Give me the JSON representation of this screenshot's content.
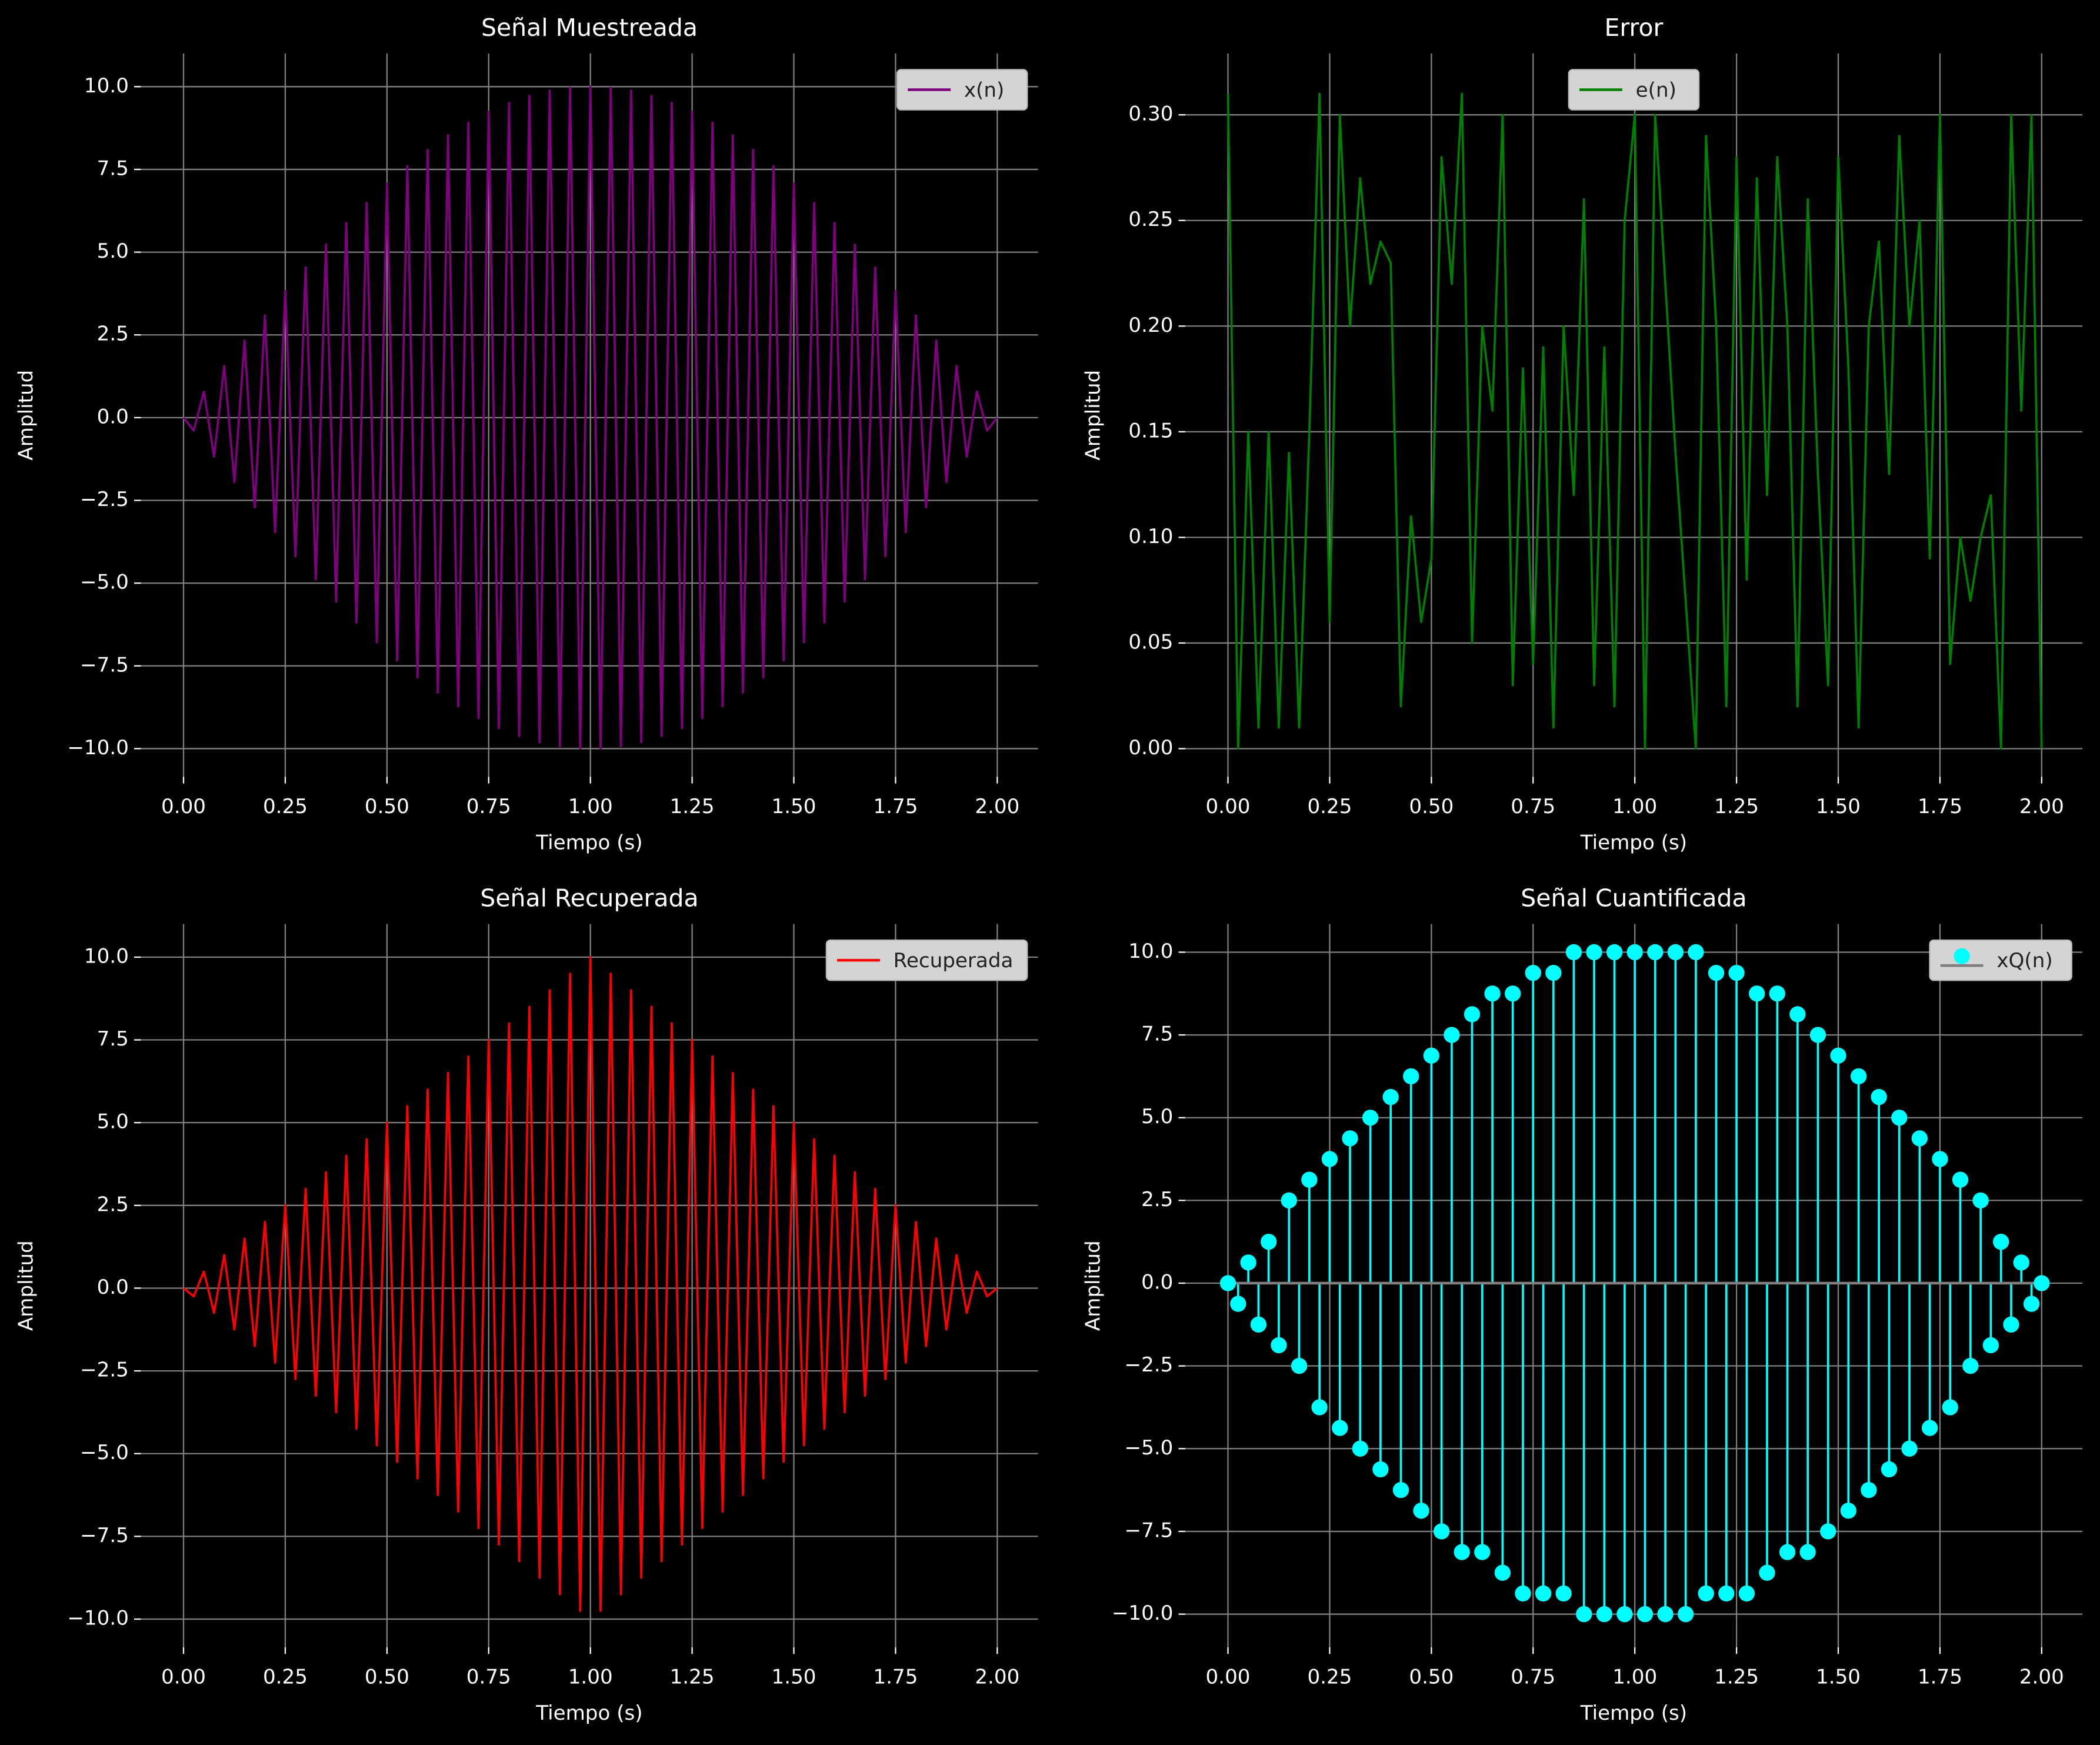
{
  "chart_data": [
    {
      "type": "line",
      "title": "Señal Muestreada",
      "xlabel": "Tiempo (s)",
      "ylabel": "Amplitud",
      "legend": "upper right",
      "grid": true,
      "x": [
        0,
        0.025,
        0.05,
        0.075,
        0.1,
        0.125,
        0.15,
        0.175,
        0.2,
        0.225,
        0.25,
        0.275,
        0.3,
        0.325,
        0.35,
        0.375,
        0.4,
        0.425,
        0.45,
        0.475,
        0.5,
        0.525,
        0.55,
        0.575,
        0.6,
        0.625,
        0.65,
        0.675,
        0.7,
        0.725,
        0.75,
        0.775,
        0.8,
        0.825,
        0.85,
        0.875,
        0.9,
        0.925,
        0.95,
        0.975,
        1,
        1.025,
        1.05,
        1.075,
        1.1,
        1.125,
        1.15,
        1.175,
        1.2,
        1.225,
        1.25,
        1.275,
        1.3,
        1.325,
        1.35,
        1.375,
        1.4,
        1.425,
        1.45,
        1.475,
        1.5,
        1.525,
        1.55,
        1.575,
        1.6,
        1.625,
        1.65,
        1.675,
        1.7,
        1.725,
        1.75,
        1.775,
        1.8,
        1.825,
        1.85,
        1.875,
        1.9,
        1.925,
        1.95,
        1.975,
        2
      ],
      "series": [
        {
          "name": "x(n)",
          "color": "#800080",
          "values": [
            0,
            -0.39,
            0.79,
            -1.18,
            1.56,
            -1.95,
            2.33,
            -2.71,
            3.09,
            -3.46,
            3.83,
            -4.19,
            4.54,
            -4.89,
            5.23,
            -5.56,
            5.88,
            -6.19,
            6.49,
            -6.79,
            7.07,
            -7.34,
            7.6,
            -7.85,
            8.09,
            -8.31,
            8.53,
            -8.72,
            8.91,
            -9.08,
            9.24,
            -9.38,
            9.51,
            -9.62,
            9.72,
            -9.81,
            9.88,
            -9.93,
            9.97,
            -9.99,
            10,
            -9.99,
            9.97,
            -9.93,
            9.88,
            -9.81,
            9.72,
            -9.62,
            9.51,
            -9.38,
            9.24,
            -9.08,
            8.91,
            -8.72,
            8.53,
            -8.31,
            8.09,
            -7.85,
            7.6,
            -7.34,
            7.07,
            -6.79,
            6.49,
            -6.19,
            5.88,
            -5.56,
            5.23,
            -4.89,
            4.54,
            -4.19,
            3.83,
            -3.46,
            3.09,
            -2.71,
            2.33,
            -1.95,
            1.56,
            -1.18,
            0.79,
            -0.39,
            0
          ]
        }
      ],
      "xlim": [
        -0.105,
        2.1
      ],
      "ylim": [
        -10.85,
        11.0
      ],
      "xticks": [
        {
          "value": 0,
          "label": "0.00"
        },
        {
          "value": 0.25,
          "label": "0.25"
        },
        {
          "value": 0.5,
          "label": "0.50"
        },
        {
          "value": 0.75,
          "label": "0.75"
        },
        {
          "value": 1,
          "label": "1.00"
        },
        {
          "value": 1.25,
          "label": "1.25"
        },
        {
          "value": 1.5,
          "label": "1.50"
        },
        {
          "value": 1.75,
          "label": "1.75"
        },
        {
          "value": 2,
          "label": "2.00"
        }
      ],
      "yticks": [
        {
          "value": -10,
          "label": "−10.0"
        },
        {
          "value": -7.5,
          "label": "−7.5"
        },
        {
          "value": -5,
          "label": "−5.0"
        },
        {
          "value": -2.5,
          "label": "−2.5"
        },
        {
          "value": 0,
          "label": "0.0"
        },
        {
          "value": 2.5,
          "label": "2.5"
        },
        {
          "value": 5,
          "label": "5.0"
        },
        {
          "value": 7.5,
          "label": "7.5"
        },
        {
          "value": 10,
          "label": "10.0"
        }
      ]
    },
    {
      "type": "line",
      "title": "Error",
      "xlabel": "Tiempo (s)",
      "ylabel": "Amplitud",
      "legend": "upper center",
      "grid": true,
      "x": [
        0,
        0.025,
        0.05,
        0.075,
        0.1,
        0.125,
        0.15,
        0.175,
        0.2,
        0.225,
        0.25,
        0.275,
        0.3,
        0.325,
        0.35,
        0.375,
        0.4,
        0.425,
        0.45,
        0.475,
        0.5,
        0.525,
        0.55,
        0.575,
        0.6,
        0.625,
        0.65,
        0.675,
        0.7,
        0.725,
        0.75,
        0.775,
        0.8,
        0.825,
        0.85,
        0.875,
        0.9,
        0.925,
        0.95,
        0.975,
        1,
        1.025,
        1.05,
        1.075,
        1.1,
        1.125,
        1.15,
        1.175,
        1.2,
        1.225,
        1.25,
        1.275,
        1.3,
        1.325,
        1.35,
        1.375,
        1.4,
        1.425,
        1.45,
        1.475,
        1.5,
        1.525,
        1.55,
        1.575,
        1.6,
        1.625,
        1.65,
        1.675,
        1.7,
        1.725,
        1.75,
        1.775,
        1.8,
        1.825,
        1.85,
        1.875,
        1.9,
        1.925,
        1.95,
        1.975,
        2
      ],
      "series": [
        {
          "name": "e(n)",
          "color": "#008000",
          "values": [
            0.31,
            0.0,
            0.15,
            0.01,
            0.15,
            0.01,
            0.14,
            0.01,
            0.15,
            0.31,
            0.06,
            0.3,
            0.2,
            0.27,
            0.22,
            0.24,
            0.23,
            0.02,
            0.11,
            0.06,
            0.09,
            0.28,
            0.22,
            0.31,
            0.05,
            0.2,
            0.16,
            0.3,
            0.03,
            0.18,
            0.04,
            0.19,
            0.01,
            0.2,
            0.12,
            0.26,
            0.03,
            0.19,
            0.02,
            0.25,
            0.3,
            0.0,
            0.3,
            0.22,
            0.14,
            0.07,
            0.0,
            0.29,
            0.2,
            0.02,
            0.28,
            0.08,
            0.27,
            0.12,
            0.28,
            0.2,
            0.02,
            0.26,
            0.13,
            0.03,
            0.28,
            0.18,
            0.01,
            0.2,
            0.24,
            0.13,
            0.29,
            0.2,
            0.25,
            0.09,
            0.3,
            0.04,
            0.1,
            0.07,
            0.1,
            0.12,
            0.0,
            0.3,
            0.16,
            0.3,
            0.0
          ]
        }
      ],
      "xlim": [
        -0.105,
        2.1
      ],
      "ylim": [
        -0.0133,
        0.329
      ],
      "xticks": [
        {
          "value": 0,
          "label": "0.00"
        },
        {
          "value": 0.25,
          "label": "0.25"
        },
        {
          "value": 0.5,
          "label": "0.50"
        },
        {
          "value": 0.75,
          "label": "0.75"
        },
        {
          "value": 1,
          "label": "1.00"
        },
        {
          "value": 1.25,
          "label": "1.25"
        },
        {
          "value": 1.5,
          "label": "1.50"
        },
        {
          "value": 1.75,
          "label": "1.75"
        },
        {
          "value": 2,
          "label": "2.00"
        }
      ],
      "yticks": [
        {
          "value": 0,
          "label": "0.00"
        },
        {
          "value": 0.05,
          "label": "0.05"
        },
        {
          "value": 0.1,
          "label": "0.10"
        },
        {
          "value": 0.15,
          "label": "0.15"
        },
        {
          "value": 0.2,
          "label": "0.20"
        },
        {
          "value": 0.25,
          "label": "0.25"
        },
        {
          "value": 0.3,
          "label": "0.30"
        }
      ]
    },
    {
      "type": "line",
      "title": "Señal Recuperada",
      "xlabel": "Tiempo (s)",
      "ylabel": "Amplitud",
      "legend": "upper right",
      "grid": true,
      "x": [
        0,
        0.025,
        0.05,
        0.075,
        0.1,
        0.125,
        0.15,
        0.175,
        0.2,
        0.225,
        0.25,
        0.275,
        0.3,
        0.325,
        0.35,
        0.375,
        0.4,
        0.425,
        0.45,
        0.475,
        0.5,
        0.525,
        0.55,
        0.575,
        0.6,
        0.625,
        0.65,
        0.675,
        0.7,
        0.725,
        0.75,
        0.775,
        0.8,
        0.825,
        0.85,
        0.875,
        0.9,
        0.925,
        0.95,
        0.975,
        1,
        1.025,
        1.05,
        1.075,
        1.1,
        1.125,
        1.15,
        1.175,
        1.2,
        1.225,
        1.25,
        1.275,
        1.3,
        1.325,
        1.35,
        1.375,
        1.4,
        1.425,
        1.45,
        1.475,
        1.5,
        1.525,
        1.55,
        1.575,
        1.6,
        1.625,
        1.65,
        1.675,
        1.7,
        1.725,
        1.75,
        1.775,
        1.8,
        1.825,
        1.85,
        1.875,
        1.9,
        1.925,
        1.95,
        1.975,
        2
      ],
      "series": [
        {
          "name": "Recuperada",
          "color": "#ff0000",
          "values": [
            0,
            -0.25,
            0.5,
            -0.75,
            1,
            -1.25,
            1.5,
            -1.75,
            2,
            -2.25,
            2.5,
            -2.75,
            3,
            -3.25,
            3.5,
            -3.75,
            4,
            -4.25,
            4.5,
            -4.75,
            5,
            -5.25,
            5.5,
            -5.75,
            6,
            -6.25,
            6.5,
            -6.75,
            7,
            -7.25,
            7.5,
            -7.75,
            8,
            -8.25,
            8.5,
            -8.75,
            9,
            -9.25,
            9.5,
            -9.75,
            10,
            -9.75,
            9.5,
            -9.25,
            9,
            -8.75,
            8.5,
            -8.25,
            8,
            -7.75,
            7.5,
            -7.25,
            7,
            -6.75,
            6.5,
            -6.25,
            6,
            -5.75,
            5.5,
            -5.25,
            5,
            -4.75,
            4.5,
            -4.25,
            4,
            -3.75,
            3.5,
            -3.25,
            3,
            -2.75,
            2.5,
            -2.25,
            2,
            -1.75,
            1.5,
            -1.25,
            1,
            -0.75,
            0.5,
            -0.25,
            0
          ]
        }
      ],
      "xlim": [
        -0.105,
        2.1
      ],
      "ylim": [
        -10.85,
        11.0
      ],
      "xticks": [
        {
          "value": 0,
          "label": "0.00"
        },
        {
          "value": 0.25,
          "label": "0.25"
        },
        {
          "value": 0.5,
          "label": "0.50"
        },
        {
          "value": 0.75,
          "label": "0.75"
        },
        {
          "value": 1,
          "label": "1.00"
        },
        {
          "value": 1.25,
          "label": "1.25"
        },
        {
          "value": 1.5,
          "label": "1.50"
        },
        {
          "value": 1.75,
          "label": "1.75"
        },
        {
          "value": 2,
          "label": "2.00"
        }
      ],
      "yticks": [
        {
          "value": -10,
          "label": "−10.0"
        },
        {
          "value": -7.5,
          "label": "−7.5"
        },
        {
          "value": -5,
          "label": "−5.0"
        },
        {
          "value": -2.5,
          "label": "−2.5"
        },
        {
          "value": 0,
          "label": "0.0"
        },
        {
          "value": 2.5,
          "label": "2.5"
        },
        {
          "value": 5,
          "label": "5.0"
        },
        {
          "value": 7.5,
          "label": "7.5"
        },
        {
          "value": 10,
          "label": "10.0"
        }
      ]
    },
    {
      "type": "stem",
      "title": "Señal Cuantificada",
      "xlabel": "Tiempo (s)",
      "ylabel": "Amplitud",
      "legend": "upper right",
      "grid": true,
      "baseline_color": "#808080",
      "x": [
        0,
        0.025,
        0.05,
        0.075,
        0.1,
        0.125,
        0.15,
        0.175,
        0.2,
        0.225,
        0.25,
        0.275,
        0.3,
        0.325,
        0.35,
        0.375,
        0.4,
        0.425,
        0.45,
        0.475,
        0.5,
        0.525,
        0.55,
        0.575,
        0.6,
        0.625,
        0.65,
        0.675,
        0.7,
        0.725,
        0.75,
        0.775,
        0.8,
        0.825,
        0.85,
        0.875,
        0.9,
        0.925,
        0.95,
        0.975,
        1,
        1.025,
        1.05,
        1.075,
        1.1,
        1.125,
        1.15,
        1.175,
        1.2,
        1.225,
        1.25,
        1.275,
        1.3,
        1.325,
        1.35,
        1.375,
        1.4,
        1.425,
        1.45,
        1.475,
        1.5,
        1.525,
        1.55,
        1.575,
        1.6,
        1.625,
        1.65,
        1.675,
        1.7,
        1.725,
        1.75,
        1.775,
        1.8,
        1.825,
        1.85,
        1.875,
        1.9,
        1.925,
        1.95,
        1.975,
        2
      ],
      "series": [
        {
          "name": "xQ(n)",
          "color": "#00ffff",
          "values": [
            0,
            -0.625,
            0.625,
            -1.25,
            1.25,
            -1.875,
            2.5,
            -2.5,
            3.125,
            -3.75,
            3.75,
            -4.375,
            4.375,
            -5,
            5,
            -5.625,
            5.625,
            -6.25,
            6.25,
            -6.875,
            6.875,
            -7.5,
            7.5,
            -8.125,
            8.125,
            -8.125,
            8.75,
            -8.75,
            8.75,
            -9.375,
            9.375,
            -9.375,
            9.375,
            -9.375,
            10,
            -10,
            10,
            -10,
            10,
            -10,
            10,
            -10,
            10,
            -10,
            10,
            -10,
            10,
            -9.375,
            9.375,
            -9.375,
            9.375,
            -9.375,
            8.75,
            -8.75,
            8.75,
            -8.125,
            8.125,
            -8.125,
            7.5,
            -7.5,
            6.875,
            -6.875,
            6.25,
            -6.25,
            5.625,
            -5.625,
            5,
            -5,
            4.375,
            -4.375,
            3.75,
            -3.75,
            3.125,
            -2.5,
            2.5,
            -1.875,
            1.25,
            -1.25,
            0.625,
            -0.625,
            0
          ]
        }
      ],
      "xlim": [
        -0.105,
        2.1
      ],
      "ylim": [
        -11.0,
        10.85
      ],
      "xticks": [
        {
          "value": 0,
          "label": "0.00"
        },
        {
          "value": 0.25,
          "label": "0.25"
        },
        {
          "value": 0.5,
          "label": "0.50"
        },
        {
          "value": 0.75,
          "label": "0.75"
        },
        {
          "value": 1,
          "label": "1.00"
        },
        {
          "value": 1.25,
          "label": "1.25"
        },
        {
          "value": 1.5,
          "label": "1.50"
        },
        {
          "value": 1.75,
          "label": "1.75"
        },
        {
          "value": 2,
          "label": "2.00"
        }
      ],
      "yticks": [
        {
          "value": -10,
          "label": "−10.0"
        },
        {
          "value": -7.5,
          "label": "−7.5"
        },
        {
          "value": -5,
          "label": "−5.0"
        },
        {
          "value": -2.5,
          "label": "−2.5"
        },
        {
          "value": 0,
          "label": "0.0"
        },
        {
          "value": 2.5,
          "label": "2.5"
        },
        {
          "value": 5,
          "label": "5.0"
        },
        {
          "value": 7.5,
          "label": "7.5"
        },
        {
          "value": 10,
          "label": "10.0"
        }
      ]
    }
  ]
}
